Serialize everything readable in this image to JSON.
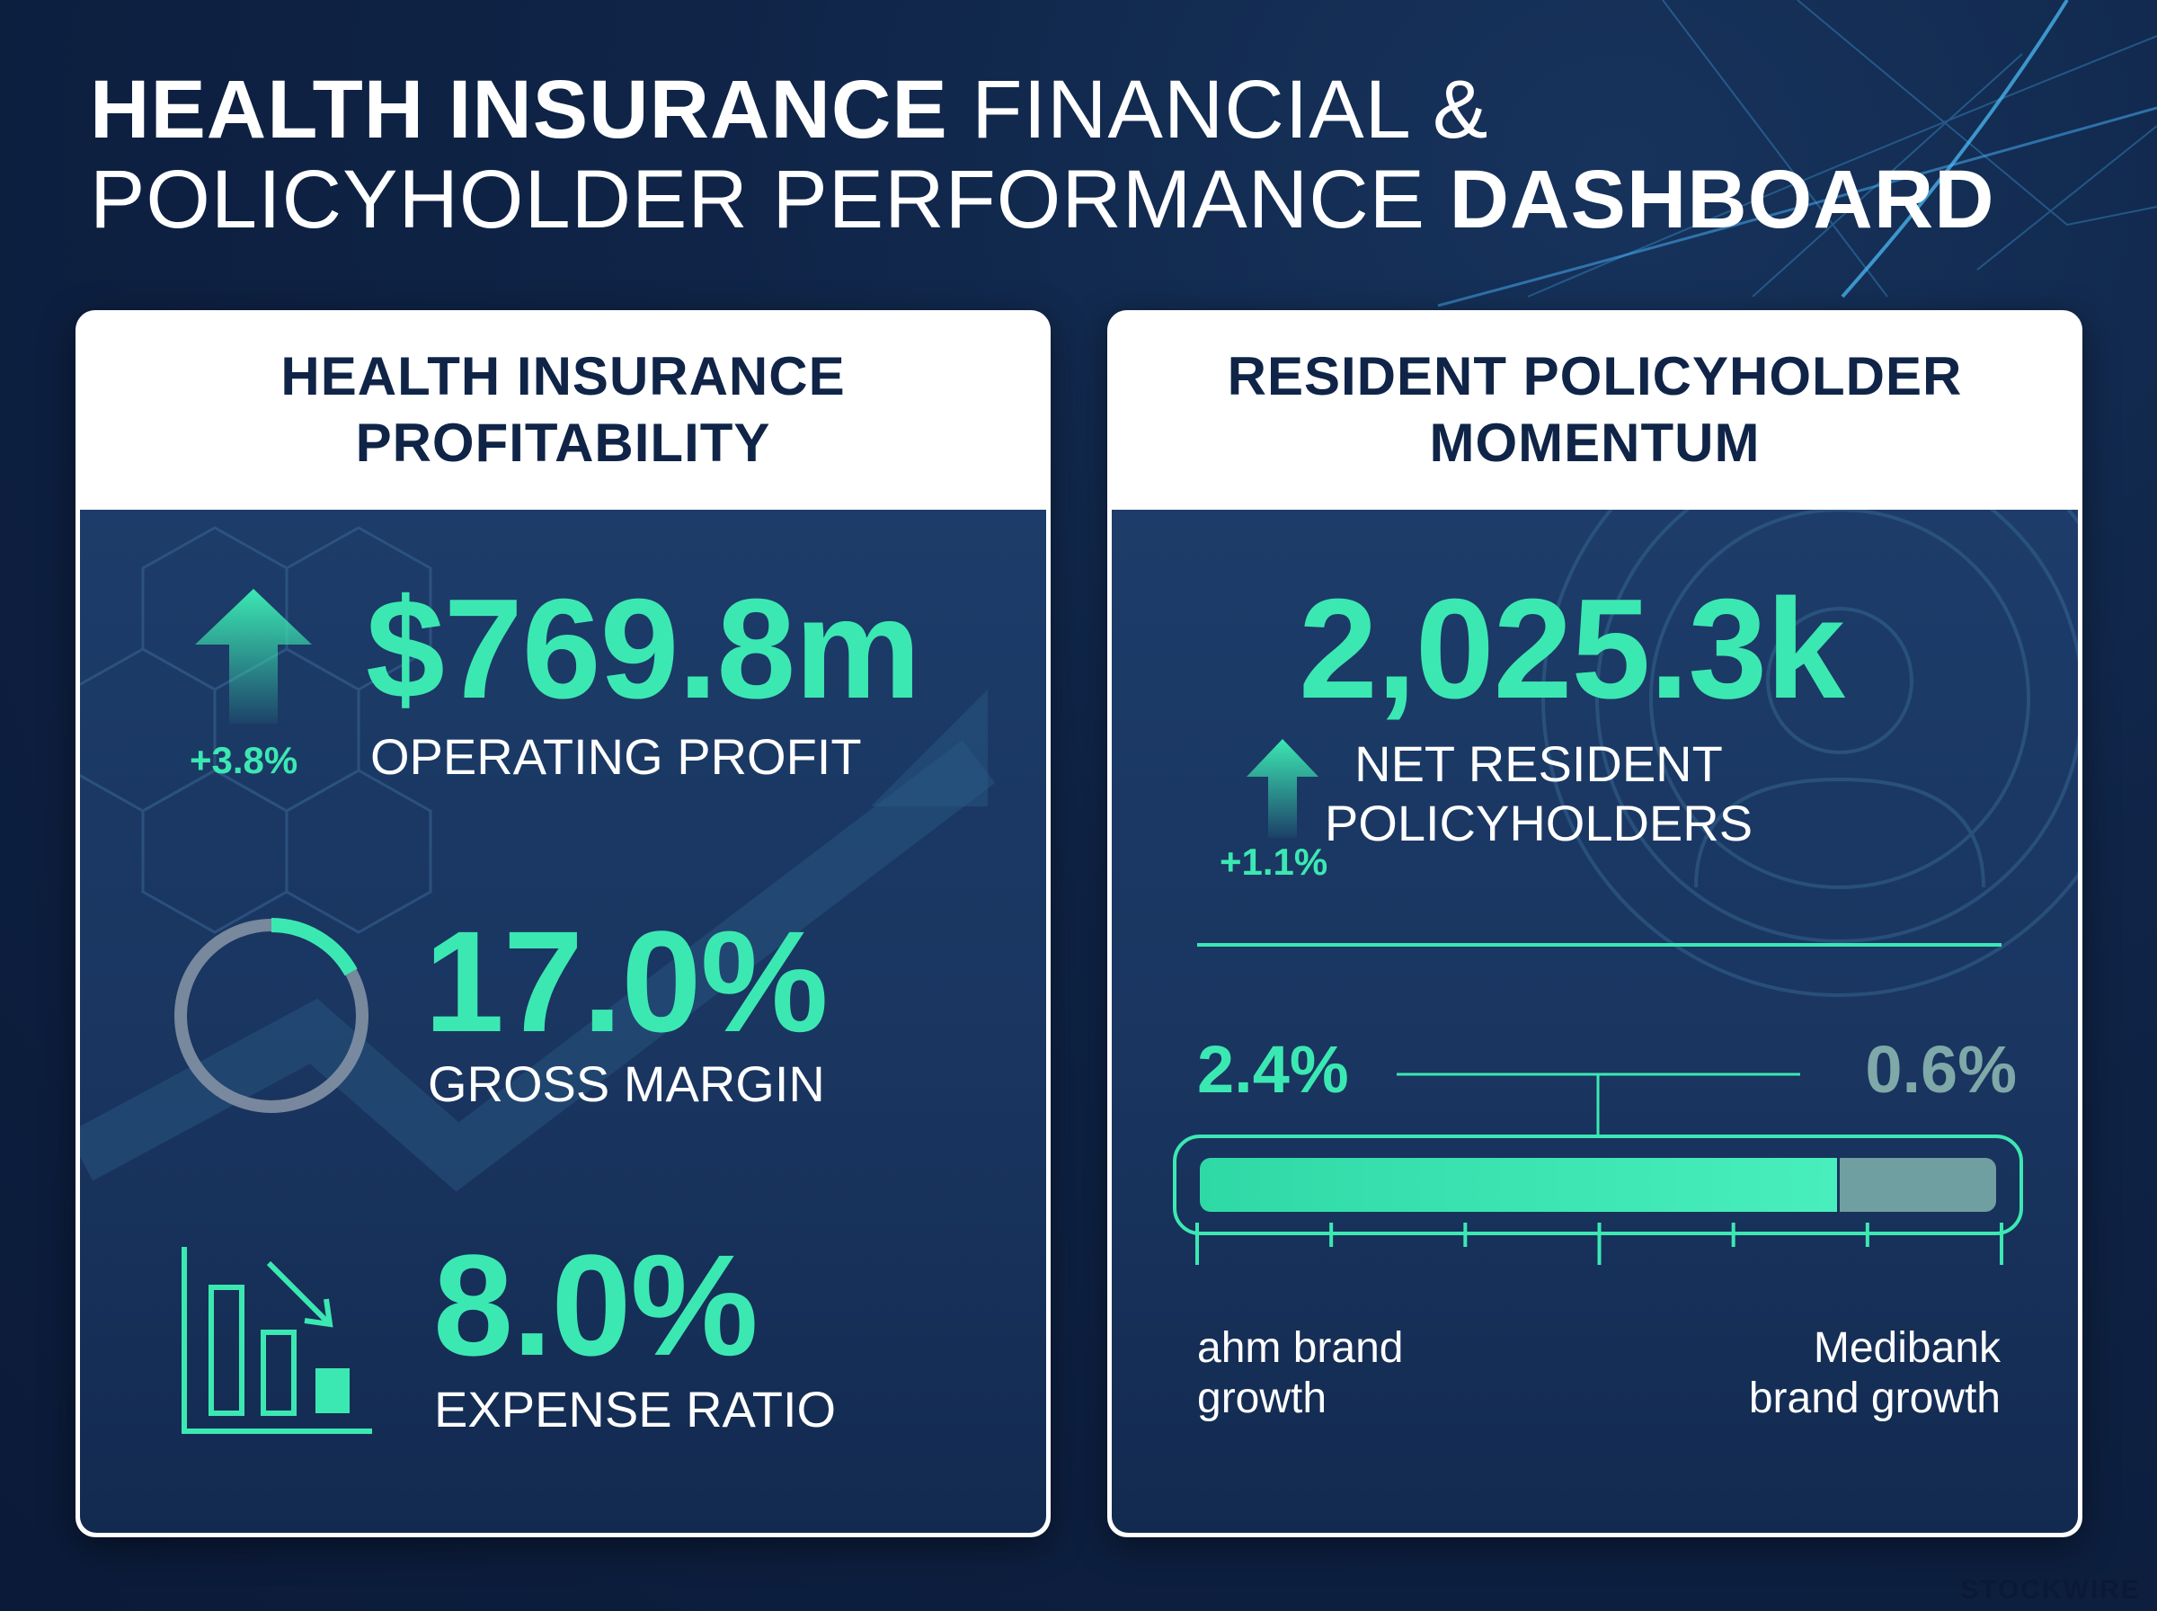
{
  "title": {
    "line1_bold": "HEALTH INSURANCE",
    "line1_light": "FINANCIAL &",
    "line2_light": "POLICYHOLDER PERFORMANCE",
    "line2_bold": "DASHBOARD"
  },
  "left_panel": {
    "heading_line1": "HEALTH INSURANCE",
    "heading_line2": "PROFITABILITY",
    "operating_profit": {
      "value": "$769.8m",
      "label": "OPERATING PROFIT",
      "change": "+3.8%",
      "icon": "arrow-up-icon"
    },
    "gross_margin": {
      "value": "17.0%",
      "label": "GROSS MARGIN",
      "icon": "ring-gauge-icon",
      "gauge_fraction": 0.17
    },
    "expense_ratio": {
      "value": "8.0%",
      "label": "EXPENSE RATIO",
      "icon": "declining-bars-icon"
    }
  },
  "right_panel": {
    "heading_line1": "RESIDENT POLICYHOLDER",
    "heading_line2": "MOMENTUM",
    "net_policyholders": {
      "value": "2,025.3k",
      "label_line1": "NET RESIDENT",
      "label_line2": "POLICYHOLDERS",
      "change": "+1.1%",
      "icon": "arrow-up-icon"
    },
    "brand_growth": {
      "ahm": {
        "value": "2.4%",
        "label_line1": "ahm brand",
        "label_line2": "growth",
        "numeric": 2.4
      },
      "medibank": {
        "value": "0.6%",
        "label_line1": "Medibank",
        "label_line2": "brand growth",
        "numeric": 0.6
      }
    }
  },
  "watermark": "STOCKWIRE",
  "colors": {
    "accent": "#3ce8b2",
    "navy": "#0f2447",
    "muted": "#6f9fa0",
    "panel": "#1b3864"
  }
}
